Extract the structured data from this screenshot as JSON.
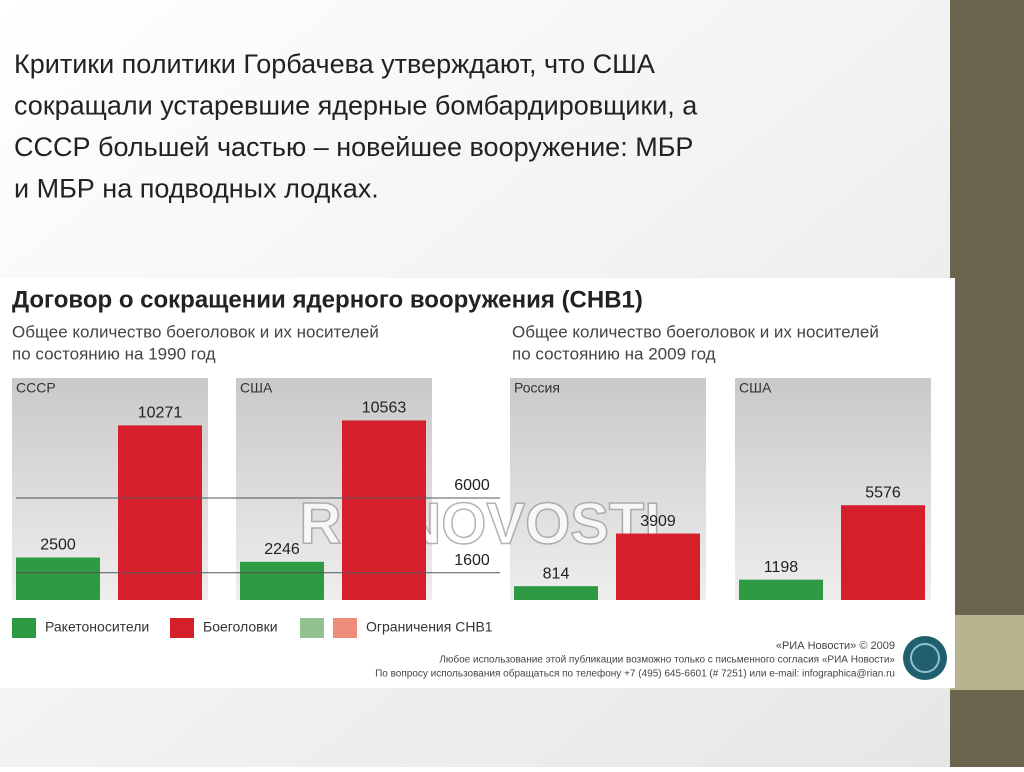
{
  "slide": {
    "lines": [
      "Критики политики Горбачева утверждают, что США",
      "сокращали устаревшие ядерные бомбардировщики, а",
      "СССР большей частью – новейшее вооружение: МБР",
      "и МБР на подводных лодках."
    ]
  },
  "chart_data": {
    "type": "bar",
    "title": "Договор о сокращении ядерного вооружения (СНВ1)",
    "series": [
      {
        "name": "Ракетоносители",
        "color": "#2f9a44"
      },
      {
        "name": "Боеголовки",
        "color": "#d5202c"
      }
    ],
    "limit_legend": {
      "name": "Ограничения СНВ1",
      "colors": [
        "#92c28f",
        "#f08c7c"
      ]
    },
    "periods": [
      {
        "subtitle": [
          "Общее количество боеголовок и их носителей",
          "по состоянию на 1990 год"
        ],
        "limits": [
          1600,
          6000
        ],
        "panels": [
          {
            "name": "СССР",
            "values": [
              2500,
              10271
            ]
          },
          {
            "name": "США",
            "values": [
              2246,
              10563
            ]
          }
        ]
      },
      {
        "subtitle": [
          "Общее количество боеголовок и их носителей",
          "по состоянию на 2009 год"
        ],
        "panels": [
          {
            "name": "Россия",
            "values": [
              814,
              3909
            ]
          },
          {
            "name": "США",
            "values": [
              1198,
              5576
            ]
          }
        ]
      }
    ],
    "watermark": "RIANOVOSTI",
    "credits": [
      "«РИА Новости» © 2009",
      "Любое использование этой публикации возможно только с письменного согласия «РИА Новости»",
      "По вопросу использования обращаться по телефону +7 (495) 645-6601 (# 7251) или e-mail: infographica@rian.ru"
    ]
  }
}
